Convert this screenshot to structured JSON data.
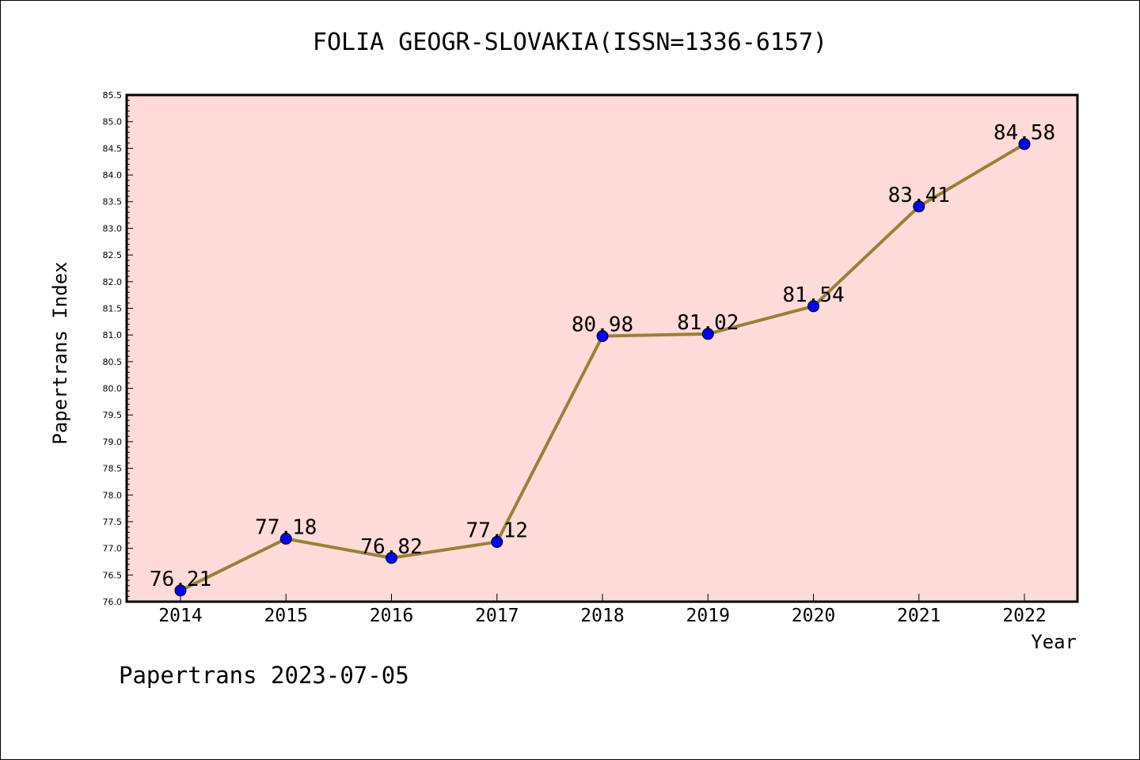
{
  "title": "FOLIA GEOGR-SLOVAKIA(ISSN=1336-6157)",
  "footer": "Papertrans 2023-07-05",
  "colors": {
    "plot_background": "#fddbd8",
    "line": "#9a8036",
    "marker": "#0000ff"
  },
  "chart_data": {
    "type": "line",
    "title": "FOLIA GEOGR-SLOVAKIA(ISSN=1336-6157)",
    "xlabel": "Year",
    "ylabel": "Papertrans Index",
    "categories": [
      "2014",
      "2015",
      "2016",
      "2017",
      "2018",
      "2019",
      "2020",
      "2021",
      "2022"
    ],
    "values": [
      76.21,
      77.18,
      76.82,
      77.12,
      80.98,
      81.02,
      81.54,
      83.41,
      84.58
    ],
    "data_labels": [
      "76.21",
      "77.18",
      "76.82",
      "77.12",
      "80.98",
      "81.02",
      "81.54",
      "83.41",
      "84.58"
    ],
    "ylim": [
      76.0,
      85.5
    ],
    "yticks": [
      "76.0",
      "76.5",
      "77.0",
      "77.5",
      "78.0",
      "78.5",
      "79.0",
      "79.5",
      "80.0",
      "80.5",
      "81.0",
      "81.5",
      "82.0",
      "82.5",
      "83.0",
      "83.5",
      "84.0",
      "84.5",
      "85.0",
      "85.5"
    ],
    "grid": false,
    "legend": "none"
  }
}
